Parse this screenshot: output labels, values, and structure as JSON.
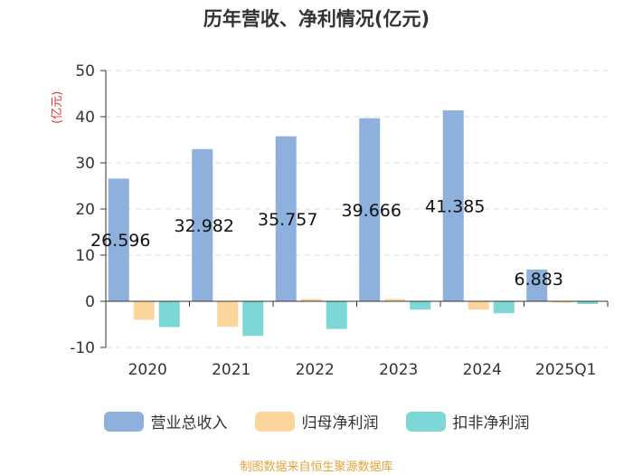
{
  "chart_data": {
    "type": "bar",
    "title": "历年营收、净利情况(亿元)",
    "ylabel": "(亿元)",
    "xlabel": "",
    "ylim": [
      -10,
      50
    ],
    "yticks": [
      -10,
      0,
      10,
      20,
      30,
      40,
      50
    ],
    "grid": true,
    "legend_position": "bottom",
    "categories": [
      "2020",
      "2021",
      "2022",
      "2023",
      "2024",
      "2025Q1"
    ],
    "series": [
      {
        "name": "营业总收入",
        "color": "#8eb0dc",
        "values": [
          26.596,
          32.982,
          35.757,
          39.666,
          41.385,
          6.883
        ],
        "labels": [
          "26.596",
          "32.982",
          "35.757",
          "39.666",
          "41.385",
          "6.883"
        ]
      },
      {
        "name": "归母净利润",
        "color": "#fcd59c",
        "values": [
          -4.0,
          -5.5,
          0.5,
          0.5,
          -1.8,
          -0.3
        ]
      },
      {
        "name": "扣非净利润",
        "color": "#7dd7d6",
        "values": [
          -5.6,
          -7.5,
          -6.0,
          -1.8,
          -2.6,
          -0.6
        ]
      }
    ]
  },
  "source": "制图数据来自恒生聚源数据库"
}
